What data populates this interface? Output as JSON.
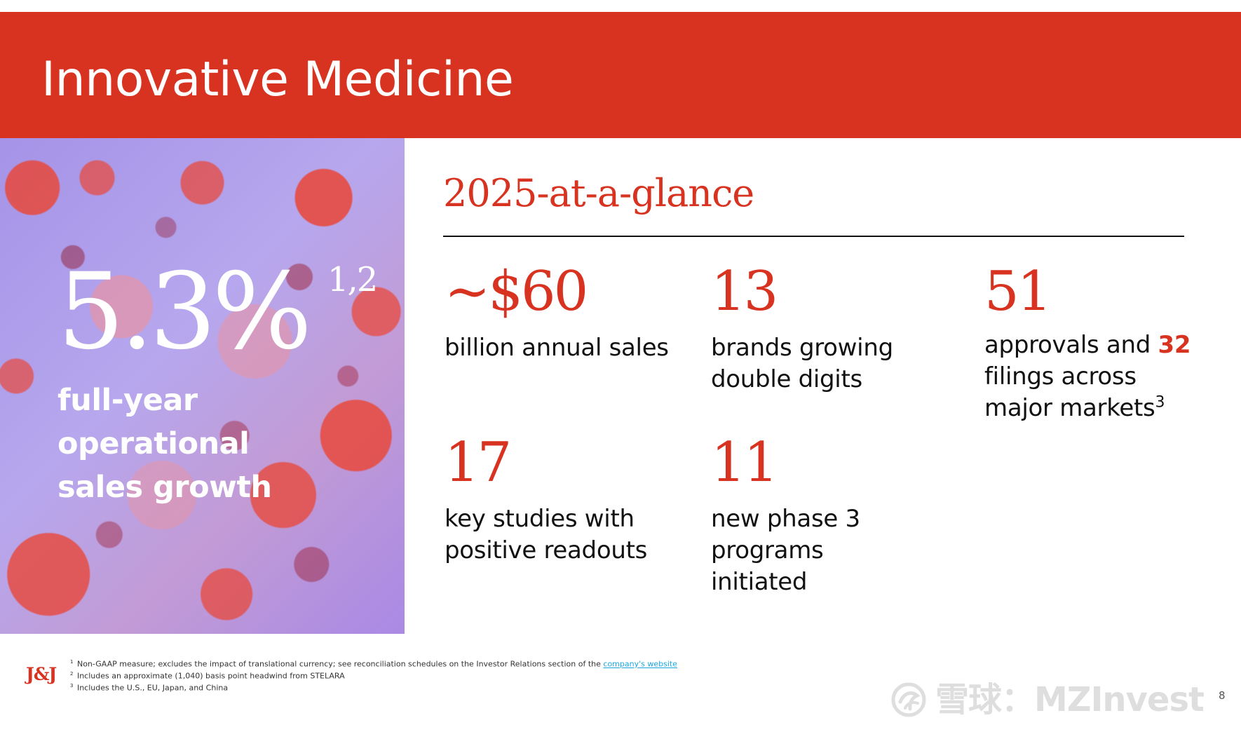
{
  "header": {
    "title": "Innovative Medicine"
  },
  "hero": {
    "value": "5.3%",
    "footnote_refs": "1,2",
    "caption": "full-year operational sales growth"
  },
  "glance": {
    "title": "2025-at-a-glance",
    "stats": [
      {
        "value": "~$60",
        "label": "billion annual sales"
      },
      {
        "value": "13",
        "label": "brands growing double digits"
      },
      {
        "value": "51",
        "label_before": "approvals and",
        "label_accent": "32",
        "label_after": "filings across major markets",
        "footnote_ref": "3"
      },
      {
        "value": "17",
        "label": "key studies with positive readouts"
      },
      {
        "value": "11",
        "label": "new phase 3 programs initiated"
      }
    ]
  },
  "footer": {
    "logo": "J&J",
    "footnotes": [
      {
        "marker": "1",
        "text": "Non-GAAP measure; excludes the impact of translational currency; see reconciliation schedules on the Investor Relations section of the",
        "link_text": "company's website"
      },
      {
        "marker": "2",
        "text": "Includes an approximate (1,040) basis point headwind from STELARA"
      },
      {
        "marker": "3",
        "text": "Includes the U.S., EU, Japan, and China"
      }
    ],
    "watermark": "雪球：MZInvest",
    "page_number": "8"
  },
  "colors": {
    "brand_red": "#d83321",
    "panel_lavender": "#b6a7ee",
    "link_blue": "#1aa7df"
  }
}
